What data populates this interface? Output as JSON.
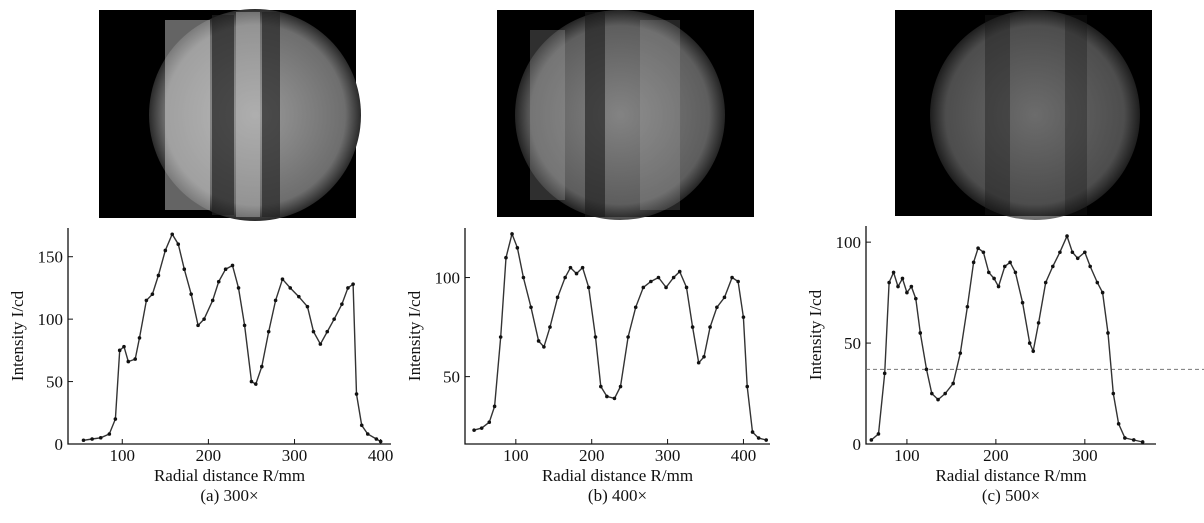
{
  "chart_data": [
    {
      "type": "line",
      "caption": "(a) 300×",
      "xlabel": "Radial distance R/mm",
      "ylabel": "Intensity I/cd",
      "xlim": [
        37,
        412
      ],
      "ylim": [
        0,
        173
      ],
      "xticks": [
        100,
        200,
        300,
        400
      ],
      "yticks": [
        0,
        50,
        100,
        150
      ],
      "color": "#333333",
      "x": [
        55,
        65,
        75,
        85,
        92,
        97,
        102,
        107,
        115,
        120,
        128,
        135,
        142,
        150,
        158,
        165,
        172,
        180,
        188,
        195,
        205,
        212,
        220,
        228,
        235,
        242,
        250,
        255,
        262,
        270,
        278,
        286,
        295,
        305,
        315,
        322,
        330,
        338,
        346,
        355,
        362,
        368,
        372,
        378,
        385,
        395,
        400
      ],
      "values": [
        3,
        4,
        5,
        8,
        20,
        75,
        78,
        66,
        68,
        85,
        115,
        120,
        135,
        155,
        168,
        160,
        140,
        120,
        95,
        100,
        115,
        130,
        140,
        143,
        125,
        95,
        50,
        48,
        62,
        90,
        115,
        132,
        125,
        118,
        110,
        90,
        80,
        90,
        100,
        112,
        125,
        128,
        40,
        15,
        8,
        4,
        2
      ]
    },
    {
      "type": "line",
      "caption": "(b) 400×",
      "xlabel": "Radial distance R/mm",
      "ylabel": "Intensity I/cd",
      "xlim": [
        33,
        435
      ],
      "ylim": [
        16,
        125
      ],
      "xticks": [
        100,
        200,
        300,
        400
      ],
      "yticks": [
        50,
        100
      ],
      "color": "#333333",
      "x": [
        45,
        55,
        65,
        72,
        80,
        87,
        95,
        102,
        110,
        120,
        130,
        137,
        145,
        155,
        165,
        172,
        180,
        188,
        196,
        205,
        212,
        220,
        230,
        238,
        248,
        258,
        268,
        278,
        288,
        298,
        308,
        316,
        325,
        333,
        341,
        348,
        356,
        365,
        375,
        385,
        393,
        400,
        405,
        412,
        420,
        430
      ],
      "values": [
        23,
        24,
        27,
        35,
        70,
        110,
        122,
        115,
        100,
        85,
        68,
        65,
        75,
        90,
        100,
        105,
        102,
        105,
        95,
        70,
        45,
        40,
        39,
        45,
        70,
        85,
        95,
        98,
        100,
        95,
        100,
        103,
        95,
        75,
        57,
        60,
        75,
        85,
        90,
        100,
        98,
        80,
        45,
        22,
        19,
        18
      ]
    },
    {
      "type": "line",
      "caption": "(c) 500×",
      "xlabel": "Radial distance R/mm",
      "ylabel": "Intensity I/cd",
      "xlim": [
        54,
        380
      ],
      "ylim": [
        0,
        108
      ],
      "xticks": [
        100,
        200,
        300
      ],
      "yticks": [
        0,
        50,
        100
      ],
      "color": "#333333",
      "hline": 37,
      "x": [
        60,
        68,
        75,
        80,
        85,
        90,
        95,
        100,
        105,
        110,
        115,
        122,
        128,
        135,
        143,
        152,
        160,
        168,
        175,
        180,
        186,
        192,
        198,
        203,
        210,
        216,
        222,
        230,
        238,
        242,
        248,
        256,
        264,
        272,
        280,
        286,
        292,
        300,
        306,
        314,
        320,
        326,
        332,
        338,
        345,
        355,
        365
      ],
      "values": [
        2,
        5,
        35,
        80,
        85,
        78,
        82,
        75,
        78,
        72,
        55,
        37,
        25,
        22,
        25,
        30,
        45,
        68,
        90,
        97,
        95,
        85,
        82,
        78,
        88,
        90,
        85,
        70,
        50,
        46,
        60,
        80,
        88,
        95,
        103,
        95,
        92,
        95,
        88,
        80,
        75,
        55,
        25,
        10,
        3,
        2,
        1
      ]
    }
  ]
}
